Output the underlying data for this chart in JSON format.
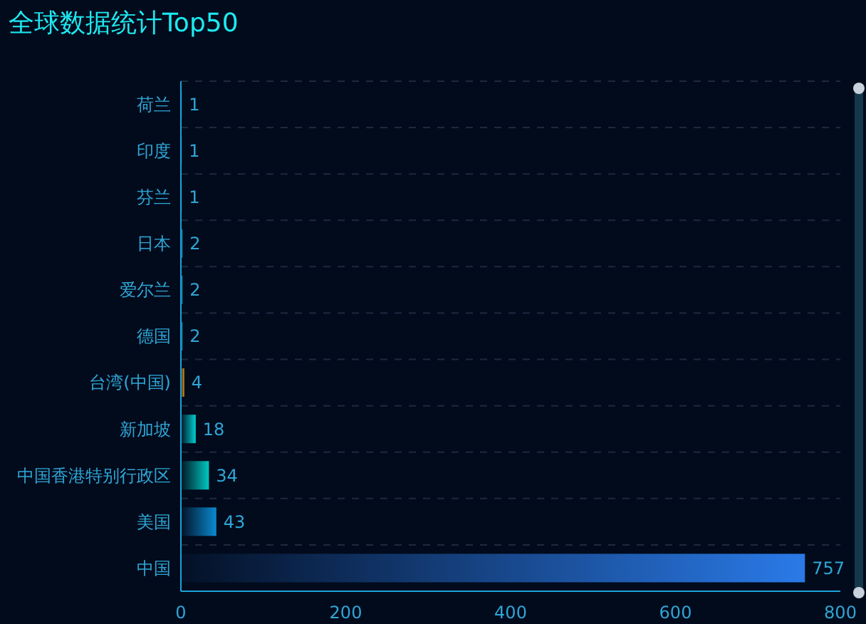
{
  "chart_data": {
    "type": "bar",
    "orientation": "horizontal",
    "title": "全球数据统计Top50",
    "categories": [
      "荷兰",
      "印度",
      "芬兰",
      "日本",
      "爱尔兰",
      "德国",
      "台湾(中国)",
      "新加坡",
      "中国香港特别行政区",
      "美国",
      "中国"
    ],
    "values": [
      1,
      1,
      1,
      2,
      2,
      2,
      4,
      18,
      34,
      43,
      757
    ],
    "colors": [
      "#1a9ad6",
      "#1a9ad6",
      "#1a9ad6",
      "#1a9ad6",
      "#1a9ad6",
      "#1a9ad6",
      "#f0a010",
      "#00d0d0",
      "#00c8c0",
      "#0a8ad0",
      "#2a7ae8"
    ],
    "xlim": [
      0,
      800
    ],
    "xticks": [
      0,
      200,
      400,
      600,
      800
    ],
    "grid": "y",
    "data_labels": true
  }
}
